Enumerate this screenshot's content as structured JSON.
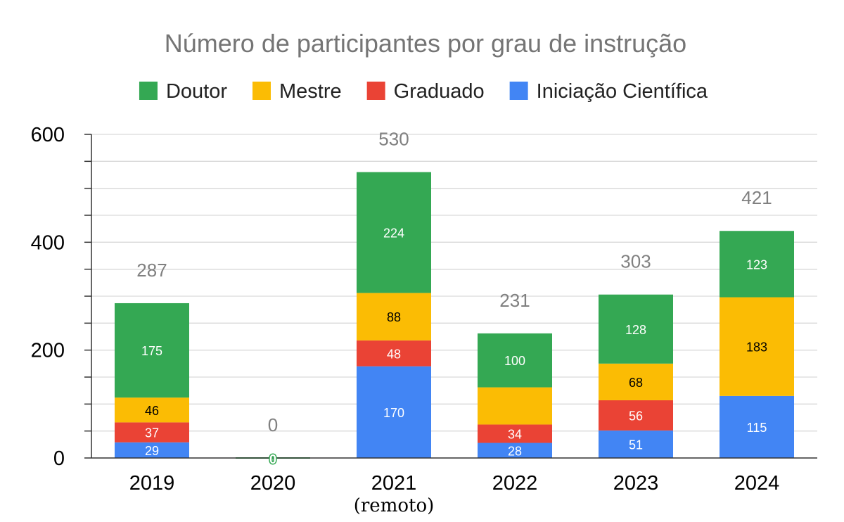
{
  "chart_data": {
    "type": "bar",
    "stacked": true,
    "title": "Número de participantes por grau de instrução",
    "xlabel": "",
    "ylabel": "",
    "ylim": [
      0,
      600
    ],
    "yticks": [
      0,
      200,
      400,
      600
    ],
    "grid": true,
    "legend_position": "top",
    "categories": [
      "2019",
      "2020",
      "2021",
      "2022",
      "2023",
      "2024"
    ],
    "category_sublabels": [
      "",
      "",
      "(remoto)",
      "",
      "",
      ""
    ],
    "totals": [
      287,
      0,
      530,
      231,
      303,
      421
    ],
    "series": [
      {
        "name": "Iniciação Científica",
        "color": "#4285f4",
        "label_color": "#ffffff",
        "values": [
          29,
          0,
          170,
          28,
          51,
          115
        ],
        "labels": [
          "29",
          "",
          "170",
          "28",
          "51",
          "115"
        ]
      },
      {
        "name": "Graduado",
        "color": "#ea4335",
        "label_color": "#ffffff",
        "values": [
          37,
          0,
          48,
          34,
          56,
          0
        ],
        "labels": [
          "37",
          "",
          "48",
          "34",
          "56",
          ""
        ]
      },
      {
        "name": "Mestre",
        "color": "#fbbc04",
        "label_color": "#000000",
        "values": [
          46,
          0,
          88,
          69,
          68,
          183
        ],
        "labels": [
          "46",
          "",
          "88",
          "",
          "68",
          "183"
        ]
      },
      {
        "name": "Doutor",
        "color": "#34a853",
        "label_color": "#ffffff",
        "values": [
          175,
          0,
          224,
          100,
          128,
          123
        ],
        "labels": [
          "175",
          "0",
          "224",
          "100",
          "128",
          "123"
        ]
      }
    ],
    "legend_order": [
      "Doutor",
      "Mestre",
      "Graduado",
      "Iniciação Científica"
    ]
  }
}
